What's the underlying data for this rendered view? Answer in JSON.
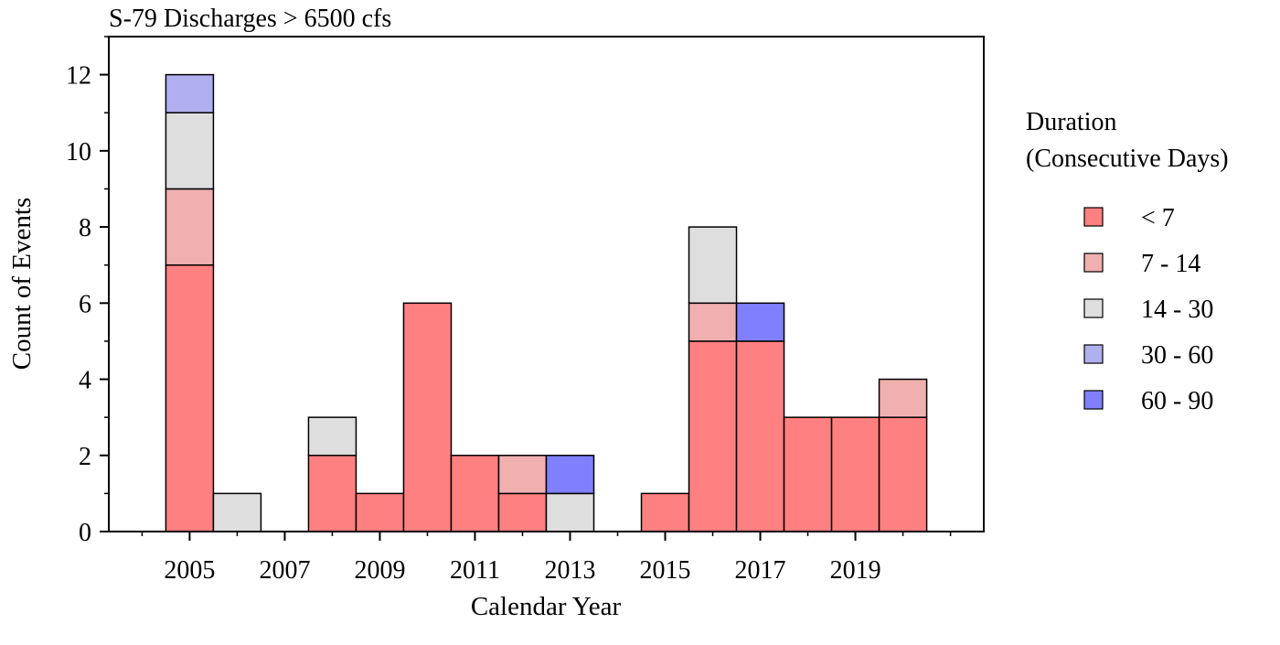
{
  "chart_data": {
    "type": "bar",
    "stacked": true,
    "title": "S-79 Discharges > 6500 cfs",
    "xlabel": "Calendar Year",
    "ylabel": "Count of Events",
    "ylim": [
      0,
      13
    ],
    "xlim": [
      2003.3,
      2021.7
    ],
    "y_ticks": [
      0,
      2,
      4,
      6,
      8,
      10,
      12
    ],
    "x_ticks": [
      2005,
      2007,
      2009,
      2011,
      2013,
      2015,
      2017,
      2019
    ],
    "grid": false,
    "legend": {
      "title_line1": "Duration",
      "title_line2": "(Consecutive Days)",
      "placement": "right"
    },
    "categories": [
      2005,
      2006,
      2007,
      2008,
      2009,
      2010,
      2011,
      2012,
      2013,
      2014,
      2015,
      2016,
      2017,
      2018,
      2019,
      2020
    ],
    "series": [
      {
        "name": "< 7",
        "color": "#ff8080",
        "values": [
          7,
          0,
          0,
          2,
          1,
          6,
          2,
          1,
          0,
          0,
          1,
          5,
          5,
          3,
          3,
          3
        ]
      },
      {
        "name": "7 - 14",
        "color": "#f0b0b0",
        "values": [
          2,
          0,
          0,
          0,
          0,
          0,
          0,
          1,
          0,
          0,
          0,
          1,
          0,
          0,
          0,
          1
        ]
      },
      {
        "name": "14 - 30",
        "color": "#dedede",
        "values": [
          2,
          1,
          0,
          1,
          0,
          0,
          0,
          0,
          1,
          0,
          0,
          2,
          0,
          0,
          0,
          0
        ]
      },
      {
        "name": "30 - 60",
        "color": "#b0b0f0",
        "values": [
          1,
          0,
          0,
          0,
          0,
          0,
          0,
          0,
          0,
          0,
          0,
          0,
          0,
          0,
          0,
          0
        ]
      },
      {
        "name": "60 - 90",
        "color": "#8080ff",
        "values": [
          0,
          0,
          0,
          0,
          0,
          0,
          0,
          0,
          1,
          0,
          0,
          0,
          1,
          0,
          0,
          0
        ]
      }
    ]
  }
}
